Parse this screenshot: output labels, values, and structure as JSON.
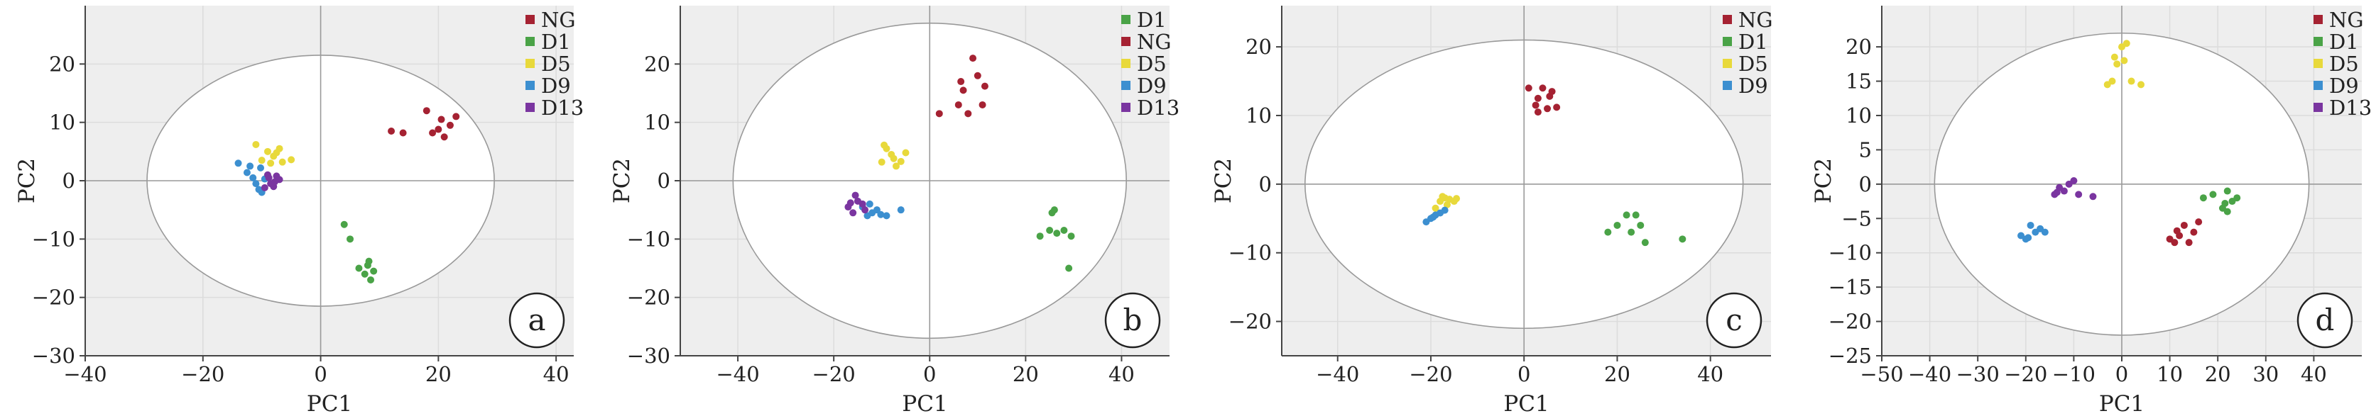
{
  "figure": {
    "colors": {
      "plot_bg": "#eeeeee",
      "ellipse_fill": "#ffffff",
      "ellipse_stroke": "#999999",
      "axis": "#444444",
      "grid": "#dcdcdc",
      "zero_line": "#9a9a9a",
      "NG": "#a52232",
      "D1": "#4aa347",
      "D5": "#e8d93b",
      "D9": "#3c8fd0",
      "D13": "#7a35a0"
    }
  },
  "chart_data": [
    {
      "type": "scatter",
      "panel_label": "a",
      "xlabel": "PC1",
      "ylabel": "PC2",
      "xlim": [
        -40,
        43
      ],
      "ylim": [
        -30,
        30
      ],
      "xticks": [
        -40,
        -20,
        0,
        20,
        40
      ],
      "yticks": [
        -30,
        -20,
        -10,
        0,
        10,
        20
      ],
      "xtick_labels": [
        "−40",
        "−20",
        "0",
        "20",
        "40"
      ],
      "ytick_labels": [
        "−30",
        "−20",
        "−10",
        "0",
        "10",
        "20"
      ],
      "ellipse": {
        "cx": 0,
        "cy": 0,
        "rx": 29.5,
        "ry": 21.5
      },
      "legend_position": "top-right",
      "grid": true,
      "series": [
        {
          "name": "NG",
          "color_key": "NG",
          "points": [
            [
              12,
              8.5
            ],
            [
              14,
              8.2
            ],
            [
              18,
              12
            ],
            [
              19,
              8.2
            ],
            [
              20,
              8.8
            ],
            [
              20.5,
              10.5
            ],
            [
              21,
              7.5
            ],
            [
              22,
              9.5
            ],
            [
              23,
              11
            ]
          ]
        },
        {
          "name": "D1",
          "color_key": "D1",
          "points": [
            [
              4,
              -7.5
            ],
            [
              5,
              -10
            ],
            [
              6.5,
              -15
            ],
            [
              7.5,
              -16
            ],
            [
              8,
              -14.5
            ],
            [
              8.5,
              -17
            ],
            [
              9,
              -15.5
            ],
            [
              8.2,
              -13.8
            ]
          ]
        },
        {
          "name": "D5",
          "color_key": "D5",
          "points": [
            [
              -11,
              6.2
            ],
            [
              -10,
              3.5
            ],
            [
              -9,
              5
            ],
            [
              -8,
              4.2
            ],
            [
              -7,
              5.5
            ],
            [
              -6.5,
              3.2
            ],
            [
              -8.5,
              3
            ],
            [
              -5,
              3.6
            ],
            [
              -7.5,
              4.8
            ]
          ]
        },
        {
          "name": "D9",
          "color_key": "D9",
          "points": [
            [
              -14,
              3
            ],
            [
              -12,
              2.5
            ],
            [
              -11.5,
              0.5
            ],
            [
              -11,
              -0.5
            ],
            [
              -10.5,
              -1.5
            ],
            [
              -10,
              -2
            ],
            [
              -9.5,
              0.3
            ],
            [
              -12.5,
              1.4
            ],
            [
              -10.2,
              2.2
            ]
          ]
        },
        {
          "name": "D13",
          "color_key": "D13",
          "points": [
            [
              -9,
              1
            ],
            [
              -8.5,
              -0.5
            ],
            [
              -8,
              -1
            ],
            [
              -7.5,
              0.8
            ],
            [
              -9.5,
              -1.2
            ],
            [
              -7,
              0.2
            ],
            [
              -8.8,
              0.5
            ],
            [
              -7.8,
              -0.2
            ]
          ]
        }
      ]
    },
    {
      "type": "scatter",
      "panel_label": "b",
      "xlabel": "PC1",
      "ylabel": "PC2",
      "xlim": [
        -52,
        50
      ],
      "ylim": [
        -30,
        30
      ],
      "xticks": [
        -40,
        -20,
        0,
        20,
        40
      ],
      "yticks": [
        -30,
        -20,
        -10,
        0,
        10,
        20
      ],
      "xtick_labels": [
        "−40",
        "−20",
        "0",
        "20",
        "40"
      ],
      "ytick_labels": [
        "−30",
        "−20",
        "−10",
        "0",
        "10",
        "20"
      ],
      "ellipse": {
        "cx": 0,
        "cy": 0,
        "rx": 41,
        "ry": 27
      },
      "legend_position": "top-right",
      "grid": true,
      "series": [
        {
          "name": "D1",
          "color_key": "D1",
          "points": [
            [
              23,
              -9.5
            ],
            [
              25,
              -8.5
            ],
            [
              25.5,
              -5.5
            ],
            [
              26,
              -5
            ],
            [
              26.5,
              -9
            ],
            [
              28,
              -8.5
            ],
            [
              29,
              -15
            ],
            [
              29.5,
              -9.5
            ]
          ]
        },
        {
          "name": "NG",
          "color_key": "NG",
          "points": [
            [
              2,
              11.5
            ],
            [
              6,
              13
            ],
            [
              6.5,
              17
            ],
            [
              7,
              15.5
            ],
            [
              8,
              11.5
            ],
            [
              9,
              21
            ],
            [
              10,
              18
            ],
            [
              11,
              13
            ],
            [
              11.5,
              16.2
            ]
          ]
        },
        {
          "name": "D5",
          "color_key": "D5",
          "points": [
            [
              -10,
              3.2
            ],
            [
              -9,
              5.5
            ],
            [
              -8,
              4.5
            ],
            [
              -7,
              2.5
            ],
            [
              -6,
              3.3
            ],
            [
              -5,
              4.8
            ],
            [
              -9.5,
              6.1
            ],
            [
              -7.5,
              3.8
            ]
          ]
        },
        {
          "name": "D9",
          "color_key": "D9",
          "points": [
            [
              -14,
              -4.5
            ],
            [
              -13,
              -6
            ],
            [
              -12,
              -5.5
            ],
            [
              -11,
              -5
            ],
            [
              -9,
              -6
            ],
            [
              -6,
              -5
            ],
            [
              -12.5,
              -4
            ],
            [
              -10.2,
              -5.8
            ]
          ]
        },
        {
          "name": "D13",
          "color_key": "D13",
          "points": [
            [
              -17,
              -4.5
            ],
            [
              -16,
              -5.5
            ],
            [
              -15,
              -3.5
            ],
            [
              -14,
              -4
            ],
            [
              -15.5,
              -2.5
            ],
            [
              -13.5,
              -5
            ],
            [
              -16.5,
              -3.8
            ]
          ]
        }
      ]
    },
    {
      "type": "scatter",
      "panel_label": "c",
      "xlabel": "PC1",
      "ylabel": "PC2",
      "xlim": [
        -52,
        53
      ],
      "ylim": [
        -25,
        26
      ],
      "xticks": [
        -40,
        -20,
        0,
        20,
        40
      ],
      "yticks": [
        -20,
        -10,
        0,
        10,
        20
      ],
      "xtick_labels": [
        "−40",
        "−20",
        "0",
        "20",
        "40"
      ],
      "ytick_labels": [
        "−20",
        "−10",
        "0",
        "10",
        "20"
      ],
      "ellipse": {
        "cx": 0,
        "cy": 0,
        "rx": 47,
        "ry": 21
      },
      "legend_position": "top-right",
      "grid": true,
      "series": [
        {
          "name": "NG",
          "color_key": "NG",
          "points": [
            [
              1,
              14
            ],
            [
              2.5,
              11.5
            ],
            [
              3,
              10.5
            ],
            [
              3,
              12.5
            ],
            [
              4,
              14
            ],
            [
              5,
              11
            ],
            [
              5.5,
              12.8
            ],
            [
              6,
              13.5
            ],
            [
              7,
              11.2
            ]
          ]
        },
        {
          "name": "D1",
          "color_key": "D1",
          "points": [
            [
              18,
              -7
            ],
            [
              20,
              -6
            ],
            [
              22,
              -4.5
            ],
            [
              23,
              -7
            ],
            [
              24,
              -4.5
            ],
            [
              25,
              -6
            ],
            [
              26,
              -8.5
            ],
            [
              34,
              -8
            ]
          ]
        },
        {
          "name": "D5",
          "color_key": "D5",
          "points": [
            [
              -19,
              -3.5
            ],
            [
              -18,
              -2.5
            ],
            [
              -17,
              -2
            ],
            [
              -16,
              -2.2
            ],
            [
              -15,
              -2.5
            ],
            [
              -16.5,
              -3
            ],
            [
              -17.5,
              -1.8
            ],
            [
              -14.5,
              -2.1
            ]
          ]
        },
        {
          "name": "D9",
          "color_key": "D9",
          "points": [
            [
              -21,
              -5.5
            ],
            [
              -20,
              -5
            ],
            [
              -19,
              -4.5
            ],
            [
              -18,
              -4.2
            ],
            [
              -17,
              -3.8
            ],
            [
              -19.5,
              -4.8
            ]
          ]
        }
      ]
    },
    {
      "type": "scatter",
      "panel_label": "d",
      "xlabel": "PC1",
      "ylabel": "PC2",
      "xlim": [
        -50,
        50
      ],
      "ylim": [
        -25,
        26
      ],
      "xticks": [
        -50,
        -40,
        -30,
        -20,
        -10,
        0,
        10,
        20,
        30,
        40
      ],
      "yticks": [
        -25,
        -20,
        -15,
        -10,
        -5,
        0,
        5,
        10,
        15,
        20
      ],
      "xtick_labels": [
        "−50",
        "−40",
        "−30",
        "−20",
        "−10",
        "0",
        "10",
        "20",
        "30",
        "40"
      ],
      "ytick_labels": [
        "−25",
        "−20",
        "−15",
        "−10",
        "−5",
        "0",
        "5",
        "10",
        "15",
        "20"
      ],
      "ellipse": {
        "cx": 0,
        "cy": 0,
        "rx": 39,
        "ry": 22
      },
      "legend_position": "top-right",
      "grid": true,
      "series": [
        {
          "name": "NG",
          "color_key": "NG",
          "points": [
            [
              10,
              -8
            ],
            [
              11,
              -8.5
            ],
            [
              12,
              -7.5
            ],
            [
              13,
              -6
            ],
            [
              14,
              -8.5
            ],
            [
              15,
              -7
            ],
            [
              16,
              -5.5
            ],
            [
              11.5,
              -6.8
            ]
          ]
        },
        {
          "name": "D1",
          "color_key": "D1",
          "points": [
            [
              17,
              -2
            ],
            [
              19,
              -1.5
            ],
            [
              21,
              -3.5
            ],
            [
              22,
              -1
            ],
            [
              22,
              -4
            ],
            [
              23,
              -2.5
            ],
            [
              24,
              -2
            ],
            [
              21.5,
              -2.8
            ]
          ]
        },
        {
          "name": "D5",
          "color_key": "D5",
          "points": [
            [
              -3,
              14.5
            ],
            [
              -2,
              15
            ],
            [
              -1,
              17.5
            ],
            [
              0,
              20
            ],
            [
              0.5,
              18
            ],
            [
              1,
              20.5
            ],
            [
              2,
              15
            ],
            [
              4,
              14.5
            ],
            [
              -1.5,
              18.5
            ]
          ]
        },
        {
          "name": "D9",
          "color_key": "D9",
          "points": [
            [
              -21,
              -7.5
            ],
            [
              -20,
              -8
            ],
            [
              -19,
              -6
            ],
            [
              -18,
              -7
            ],
            [
              -17,
              -6.5
            ],
            [
              -16,
              -7
            ],
            [
              -19.5,
              -7.8
            ]
          ]
        },
        {
          "name": "D13",
          "color_key": "D13",
          "points": [
            [
              -14,
              -1.5
            ],
            [
              -13,
              -0.5
            ],
            [
              -12,
              -1
            ],
            [
              -11,
              0
            ],
            [
              -10,
              0.5
            ],
            [
              -9,
              -1.5
            ],
            [
              -13.5,
              -1.2
            ],
            [
              -6,
              -1.8
            ]
          ]
        }
      ]
    }
  ]
}
